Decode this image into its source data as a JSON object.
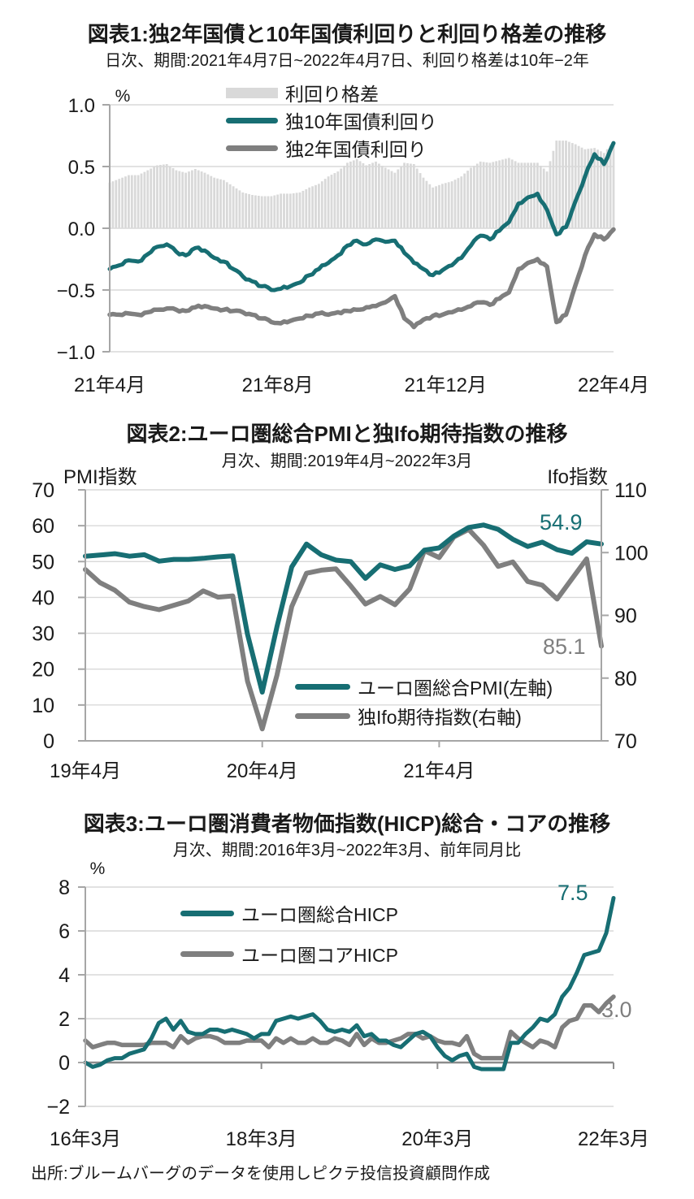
{
  "page": {
    "footer_source": "出所:ブルームバーグのデータを使用しピクテ投信投資顧問作成"
  },
  "colors": {
    "teal": "#176e73",
    "gray": "#7f7f7f",
    "bar_fill": "#d9d9d9",
    "grid": "#d9d9d9",
    "axis": "#a6a6a6",
    "zero_axis": "#8c8c8c",
    "text": "#1a1a1a"
  },
  "chart_data": [
    {
      "type": "line+bar",
      "title": "図表1:独2年国債と10年国債利回りと利回り格差の推移",
      "subtitle": "日次、期間:2021年4月7日~2022年4月7日、利回り格差は10年−2年",
      "unit": "%",
      "y_axis": {
        "min": -1.0,
        "max": 1.0,
        "ticks": [
          {
            "v": 1.0,
            "label": "1.0"
          },
          {
            "v": 0.5,
            "label": "0.5"
          },
          {
            "v": 0.0,
            "label": "0.0"
          },
          {
            "v": -0.5,
            "label": "−0.5"
          },
          {
            "v": -1.0,
            "label": "−1.0"
          }
        ]
      },
      "x_axis": {
        "months": 12,
        "ticks": [
          {
            "m": 0,
            "label": "21年4月"
          },
          {
            "m": 4,
            "label": "21年8月"
          },
          {
            "m": 8,
            "label": "21年12月"
          },
          {
            "m": 12,
            "label": "22年4月"
          }
        ]
      },
      "legend": [
        {
          "label": "利回り格差",
          "type": "bar"
        },
        {
          "label": "独10年国債利回り",
          "type": "line",
          "color": "teal"
        },
        {
          "label": "独2年国債利回り",
          "type": "line",
          "color": "gray"
        }
      ],
      "bars": {
        "name": "利回り格差",
        "derived": "10年国債利回り − 2年国債利回り"
      },
      "series": [
        {
          "name": "独10年国債利回り",
          "color": "teal",
          "cadence": "weekly",
          "values": [
            -0.33,
            -0.3,
            -0.26,
            -0.27,
            -0.21,
            -0.15,
            -0.13,
            -0.19,
            -0.22,
            -0.16,
            -0.18,
            -0.24,
            -0.27,
            -0.33,
            -0.39,
            -0.43,
            -0.47,
            -0.5,
            -0.49,
            -0.47,
            -0.44,
            -0.38,
            -0.33,
            -0.28,
            -0.22,
            -0.14,
            -0.1,
            -0.13,
            -0.09,
            -0.11,
            -0.1,
            -0.2,
            -0.28,
            -0.33,
            -0.38,
            -0.34,
            -0.3,
            -0.24,
            -0.14,
            -0.06,
            -0.09,
            -0.02,
            0.05,
            0.2,
            0.25,
            0.28,
            0.15,
            -0.05,
            0.01,
            0.22,
            0.42,
            0.6,
            0.52,
            0.69
          ]
        },
        {
          "name": "独2年国債利回り",
          "color": "gray",
          "cadence": "weekly",
          "values": [
            -0.7,
            -0.7,
            -0.69,
            -0.7,
            -0.68,
            -0.66,
            -0.65,
            -0.66,
            -0.67,
            -0.64,
            -0.63,
            -0.65,
            -0.66,
            -0.67,
            -0.68,
            -0.7,
            -0.73,
            -0.76,
            -0.77,
            -0.75,
            -0.73,
            -0.71,
            -0.69,
            -0.7,
            -0.68,
            -0.67,
            -0.66,
            -0.64,
            -0.63,
            -0.6,
            -0.55,
            -0.73,
            -0.8,
            -0.74,
            -0.71,
            -0.7,
            -0.68,
            -0.66,
            -0.63,
            -0.6,
            -0.62,
            -0.57,
            -0.52,
            -0.33,
            -0.28,
            -0.25,
            -0.31,
            -0.76,
            -0.7,
            -0.46,
            -0.22,
            -0.05,
            -0.09,
            -0.01
          ]
        }
      ]
    },
    {
      "type": "line",
      "title": "図表2:ユーロ圏総合PMIと独Ifo期待指数の推移",
      "subtitle": "月次、期間:2019年4月~2022年3月",
      "left_axis": {
        "label": "PMI指数",
        "min": 0,
        "max": 70,
        "ticks": [
          {
            "v": 70,
            "label": "70"
          },
          {
            "v": 60,
            "label": "60"
          },
          {
            "v": 50,
            "label": "50"
          },
          {
            "v": 40,
            "label": "40"
          },
          {
            "v": 30,
            "label": "30"
          },
          {
            "v": 20,
            "label": "20"
          },
          {
            "v": 10,
            "label": "10"
          },
          {
            "v": 0,
            "label": "0"
          }
        ]
      },
      "right_axis": {
        "label": "Ifo指数",
        "min": 70,
        "max": 110,
        "ticks": [
          {
            "v": 110,
            "label": "110"
          },
          {
            "v": 100,
            "label": "100"
          },
          {
            "v": 90,
            "label": "90"
          },
          {
            "v": 80,
            "label": "80"
          },
          {
            "v": 70,
            "label": "70"
          }
        ]
      },
      "x_axis": {
        "months": 36,
        "ticks": [
          {
            "m": 0,
            "label": "19年4月"
          },
          {
            "m": 12,
            "label": "20年4月"
          },
          {
            "m": 24,
            "label": "21年4月"
          }
        ]
      },
      "legend": [
        {
          "label": "ユーロ圏総合PMI(左軸)",
          "type": "line",
          "color": "teal"
        },
        {
          "label": "独Ifo期待指数(右軸)",
          "type": "line",
          "color": "gray"
        }
      ],
      "annotations": [
        {
          "text": "54.9",
          "series": "ユーロ圏総合PMI",
          "color": "teal"
        },
        {
          "text": "85.1",
          "series": "独Ifo期待指数",
          "color": "gray"
        }
      ],
      "series": [
        {
          "name": "ユーロ圏総合PMI",
          "axis": "left",
          "color": "teal",
          "cadence": "monthly",
          "values": [
            51.5,
            51.8,
            52.2,
            51.5,
            51.9,
            50.1,
            50.6,
            50.6,
            50.9,
            51.3,
            51.6,
            29.7,
            13.6,
            31.9,
            48.5,
            54.9,
            51.9,
            50.4,
            50.0,
            45.3,
            49.1,
            47.8,
            48.8,
            53.2,
            53.8,
            57.1,
            59.5,
            60.2,
            59.0,
            56.2,
            54.2,
            55.4,
            53.3,
            52.3,
            55.5,
            54.9
          ]
        },
        {
          "name": "独Ifo期待指数",
          "axis": "right",
          "color": "gray",
          "cadence": "monthly",
          "values": [
            97.3,
            95.2,
            94.0,
            92.1,
            91.4,
            90.9,
            91.6,
            92.3,
            93.9,
            92.9,
            93.1,
            79.5,
            71.9,
            80.5,
            91.4,
            96.7,
            97.2,
            97.4,
            94.7,
            91.8,
            93.0,
            91.7,
            94.2,
            100.3,
            99.2,
            102.5,
            103.7,
            101.2,
            97.8,
            98.5,
            95.4,
            94.8,
            92.6,
            95.8,
            99.0,
            85.1
          ]
        }
      ]
    },
    {
      "type": "line",
      "title": "図表3:ユーロ圏消費者物価指数(HICP)総合・コアの推移",
      "subtitle": "月次、期間:2016年3月~2022年3月、前年同月比",
      "unit": "%",
      "y_axis": {
        "min": -2,
        "max": 8,
        "ticks": [
          {
            "v": 8,
            "label": "8"
          },
          {
            "v": 6,
            "label": "6"
          },
          {
            "v": 4,
            "label": "4"
          },
          {
            "v": 2,
            "label": "2"
          },
          {
            "v": 0,
            "label": "0"
          },
          {
            "v": -2,
            "label": "−2"
          }
        ]
      },
      "x_axis": {
        "months": 72,
        "ticks": [
          {
            "m": 0,
            "label": "16年3月"
          },
          {
            "m": 24,
            "label": "18年3月"
          },
          {
            "m": 48,
            "label": "20年3月"
          },
          {
            "m": 72,
            "label": "22年3月"
          }
        ]
      },
      "legend": [
        {
          "label": "ユーロ圏総合HICP",
          "type": "line",
          "color": "teal"
        },
        {
          "label": "ユーロ圏コアHICP",
          "type": "line",
          "color": "gray"
        }
      ],
      "annotations": [
        {
          "text": "7.5",
          "series": "ユーロ圏総合HICP",
          "color": "teal"
        },
        {
          "text": "3.0",
          "series": "ユーロ圏コアHICP",
          "color": "gray"
        }
      ],
      "series": [
        {
          "name": "ユーロ圏総合HICP",
          "color": "teal",
          "cadence": "monthly",
          "values": [
            0.0,
            -0.2,
            -0.1,
            0.1,
            0.2,
            0.2,
            0.4,
            0.5,
            0.6,
            1.1,
            1.8,
            2.0,
            1.5,
            1.9,
            1.4,
            1.3,
            1.3,
            1.5,
            1.5,
            1.4,
            1.5,
            1.4,
            1.3,
            1.1,
            1.3,
            1.3,
            1.9,
            2.0,
            2.1,
            2.0,
            2.1,
            2.2,
            1.9,
            1.5,
            1.4,
            1.5,
            1.4,
            1.7,
            1.2,
            1.3,
            1.0,
            1.0,
            0.8,
            0.7,
            1.0,
            1.3,
            1.4,
            1.2,
            0.7,
            0.3,
            0.1,
            0.3,
            0.4,
            -0.2,
            -0.3,
            -0.3,
            -0.3,
            -0.3,
            0.9,
            0.9,
            1.3,
            1.6,
            2.0,
            1.9,
            2.2,
            3.0,
            3.4,
            4.1,
            4.9,
            5.0,
            5.1,
            5.9,
            7.5
          ]
        },
        {
          "name": "ユーロ圏コアHICP",
          "color": "gray",
          "cadence": "monthly",
          "values": [
            1.0,
            0.7,
            0.8,
            0.9,
            0.9,
            0.8,
            0.8,
            0.8,
            0.8,
            0.9,
            0.9,
            0.9,
            0.7,
            1.2,
            0.9,
            1.1,
            1.2,
            1.2,
            1.1,
            0.9,
            0.9,
            0.9,
            1.0,
            1.0,
            1.0,
            0.7,
            1.1,
            0.9,
            1.1,
            0.9,
            0.9,
            1.1,
            0.9,
            0.9,
            1.1,
            1.0,
            0.8,
            1.3,
            0.8,
            1.1,
            0.9,
            0.9,
            1.0,
            1.1,
            1.3,
            1.3,
            1.1,
            1.2,
            1.0,
            0.9,
            0.9,
            0.8,
            1.2,
            0.4,
            0.2,
            0.2,
            0.2,
            0.2,
            1.4,
            1.1,
            0.9,
            0.7,
            1.0,
            0.9,
            0.7,
            1.6,
            1.9,
            2.0,
            2.6,
            2.6,
            2.3,
            2.7,
            3.0
          ]
        }
      ]
    }
  ]
}
